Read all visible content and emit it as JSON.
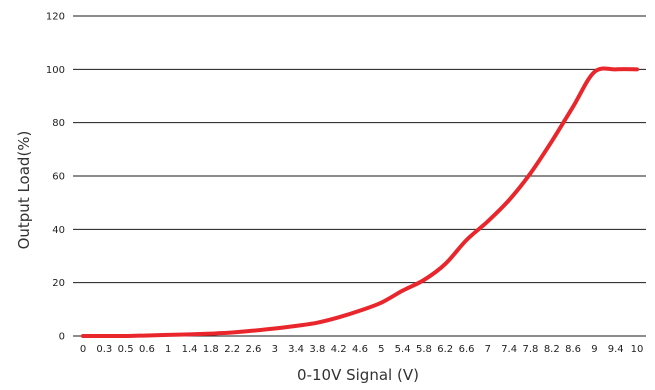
{
  "chart_data": {
    "type": "line",
    "xlabel": "0-10V Signal (V)",
    "ylabel": "Output Load(%)",
    "ylim": [
      0,
      120
    ],
    "yticks": [
      0,
      20,
      40,
      60,
      80,
      100,
      120
    ],
    "grid": "horizontal",
    "x_tick_labels": [
      "0",
      "0.3",
      "0.5",
      "0.6",
      "1",
      "1.4",
      "1.8",
      "2.2",
      "2.6",
      "3",
      "3.4",
      "3.8",
      "4.2",
      "4.6",
      "5",
      "5.4",
      "5.8",
      "6.2",
      "6.6",
      "7",
      "7.4",
      "7.8",
      "8.2",
      "8.6",
      "9",
      "9.4",
      "10"
    ],
    "series": [
      {
        "color": "#e8262b",
        "values": [
          0,
          0,
          0,
          0.2,
          0.4,
          0.6,
          0.9,
          1.3,
          2,
          2.8,
          3.8,
          5,
          7,
          9.5,
          12.5,
          17,
          21,
          27,
          36,
          43,
          51,
          61,
          73,
          86,
          99,
          100,
          100
        ]
      }
    ]
  }
}
